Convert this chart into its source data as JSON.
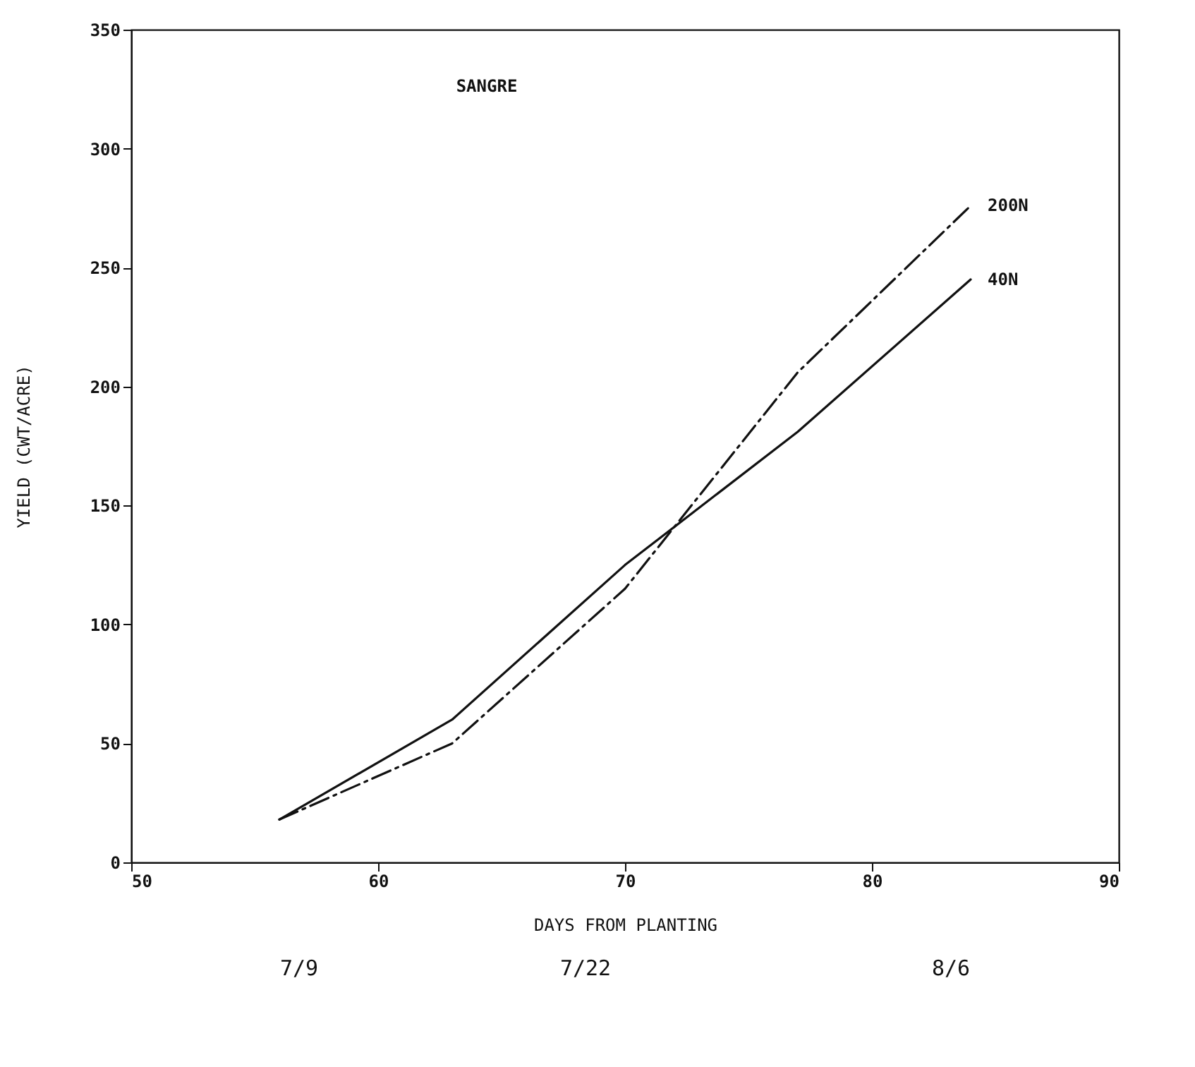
{
  "chart_data": {
    "type": "line",
    "title": "SANGRE",
    "xlabel": "DAYS FROM PLANTING",
    "ylabel": "YIELD (CWT/ACRE)",
    "x": [
      56,
      63,
      70,
      77,
      84
    ],
    "series": [
      {
        "name": "200N",
        "color": "#111111",
        "line_style": "dashed",
        "values": [
          18,
          50,
          115,
          206,
          276
        ]
      },
      {
        "name": "40N",
        "color": "#111111",
        "line_style": "solid",
        "values": [
          18,
          60,
          125,
          181,
          245
        ]
      }
    ],
    "xlim": [
      50,
      90
    ],
    "xticks": [
      50,
      60,
      70,
      80,
      90
    ],
    "ylim": [
      0,
      350
    ],
    "yticks": [
      0,
      50,
      100,
      150,
      200,
      250,
      300,
      350
    ],
    "grid": false,
    "legend": false,
    "marker": "none",
    "annotations": [
      "7/9",
      "7/22",
      "8/6"
    ]
  }
}
